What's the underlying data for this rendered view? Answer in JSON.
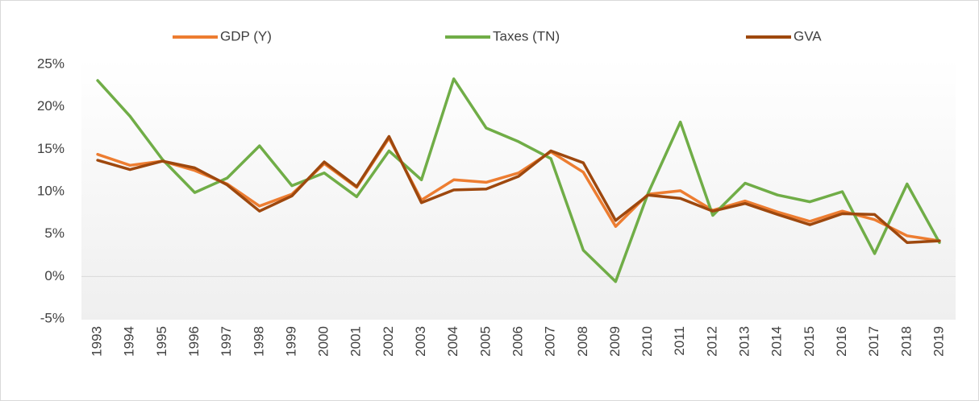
{
  "chart_data": {
    "type": "line",
    "categories": [
      "1993",
      "1994",
      "1995",
      "1996",
      "1997",
      "1998",
      "1999",
      "2000",
      "2001",
      "2002",
      "2003",
      "2004",
      "2005",
      "2006",
      "2007",
      "2008",
      "2009",
      "2010",
      "2011",
      "2012",
      "2013",
      "2014",
      "2015",
      "2016",
      "2017",
      "2018",
      "2019"
    ],
    "series": [
      {
        "name": "GDP (Y)",
        "color": "#ed7d31",
        "values": [
          14.4,
          13.1,
          13.6,
          12.5,
          10.9,
          8.3,
          9.7,
          13.3,
          10.5,
          16.3,
          9.0,
          11.4,
          11.1,
          12.2,
          14.7,
          12.3,
          5.9,
          9.7,
          10.1,
          7.8,
          8.9,
          7.6,
          6.5,
          7.7,
          6.7,
          4.8,
          4.2
        ]
      },
      {
        "name": "Taxes (TN)",
        "color": "#70ad47",
        "values": [
          23.1,
          18.9,
          13.8,
          9.9,
          11.6,
          15.4,
          10.7,
          12.2,
          9.4,
          14.8,
          11.4,
          23.3,
          17.5,
          15.9,
          13.9,
          3.1,
          -0.6,
          9.8,
          18.2,
          7.2,
          11.0,
          9.6,
          8.8,
          10.0,
          2.7,
          10.9,
          4.0
        ]
      },
      {
        "name": "GVA",
        "color": "#9e480e",
        "values": [
          13.7,
          12.6,
          13.6,
          12.8,
          10.8,
          7.7,
          9.5,
          13.5,
          10.6,
          16.5,
          8.7,
          10.2,
          10.3,
          11.8,
          14.8,
          13.4,
          6.6,
          9.6,
          9.2,
          7.7,
          8.6,
          7.3,
          6.1,
          7.4,
          7.3,
          4.0,
          4.2
        ]
      }
    ],
    "ylim": [
      -5,
      25
    ],
    "yticks": [
      {
        "value": -5,
        "label": "-5%"
      },
      {
        "value": 0,
        "label": "0%"
      },
      {
        "value": 5,
        "label": "5%"
      },
      {
        "value": 10,
        "label": "10%"
      },
      {
        "value": 15,
        "label": "15%"
      },
      {
        "value": 20,
        "label": "20%"
      },
      {
        "value": 25,
        "label": "25%"
      }
    ],
    "grid": false,
    "legend": "top"
  }
}
